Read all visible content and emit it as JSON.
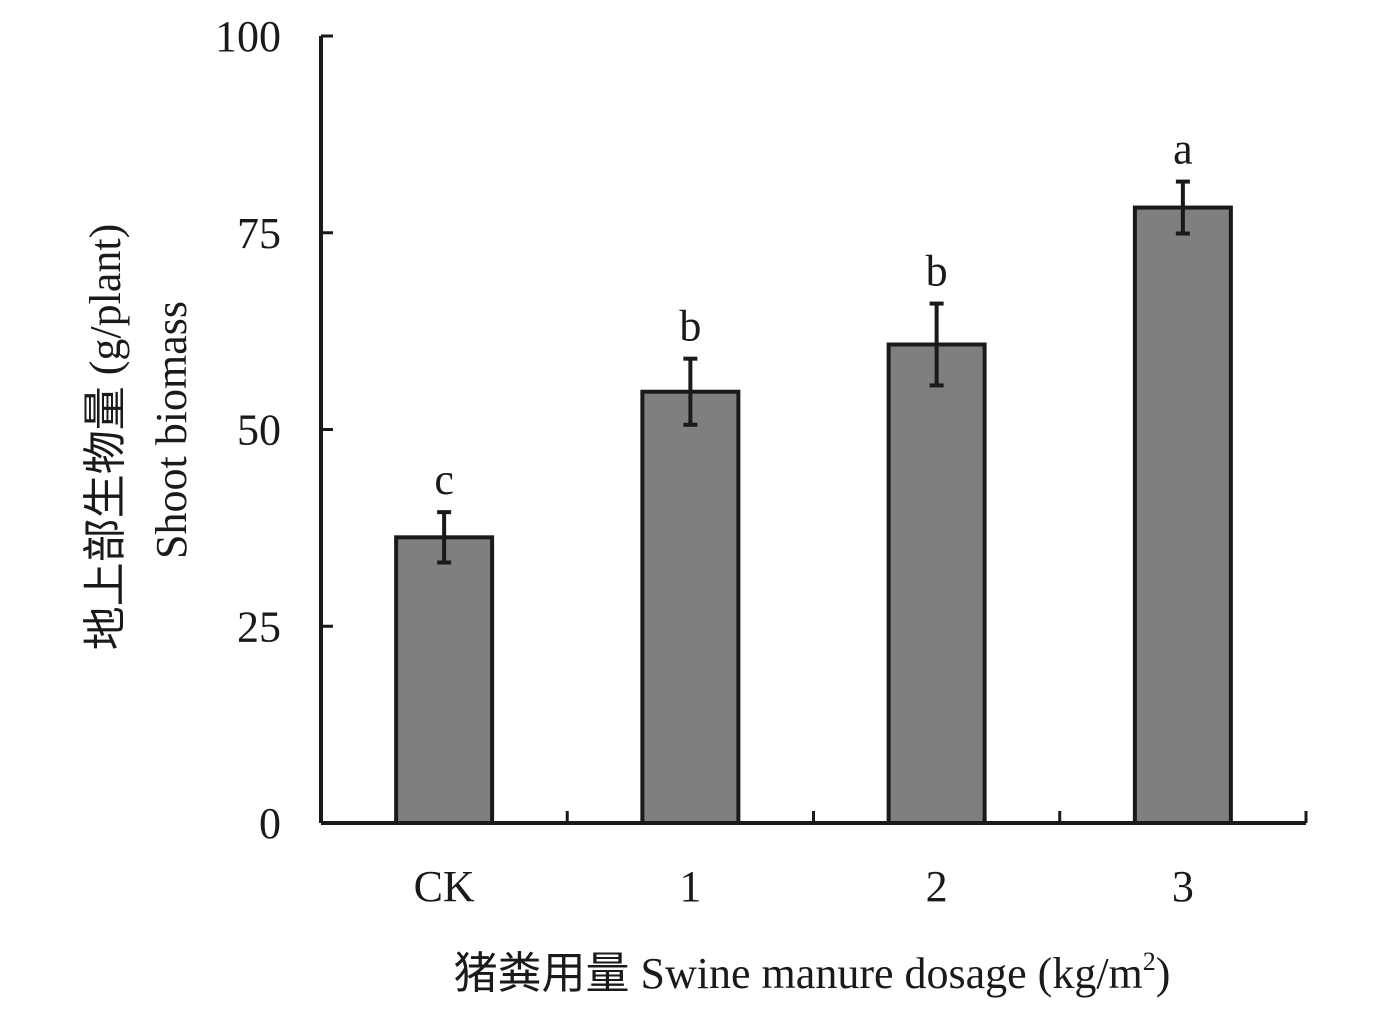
{
  "chart_data": {
    "type": "bar",
    "categories": [
      "CK",
      "1",
      "2",
      "3"
    ],
    "values": [
      36.3,
      54.8,
      60.8,
      78.2
    ],
    "errors": [
      3.2,
      4.2,
      5.2,
      3.3
    ],
    "significance": [
      "c",
      "b",
      "b",
      "a"
    ],
    "ylim": [
      0,
      100
    ],
    "yticks": [
      0,
      25,
      50,
      75,
      100
    ],
    "xlabel": {
      "prefix": "猪粪用量 Swine manure dosage (kg/m",
      "sup": "2",
      "suffix": ")"
    },
    "ylabel_line1": "地上部生物量 (g/plant)",
    "ylabel_line2": "Shoot biomass",
    "grid": false,
    "legend": "none",
    "colors": {
      "bar_fill": "#7f7f7f",
      "bar_stroke": "#1a1a1a",
      "axis": "#1a1a1a"
    }
  }
}
